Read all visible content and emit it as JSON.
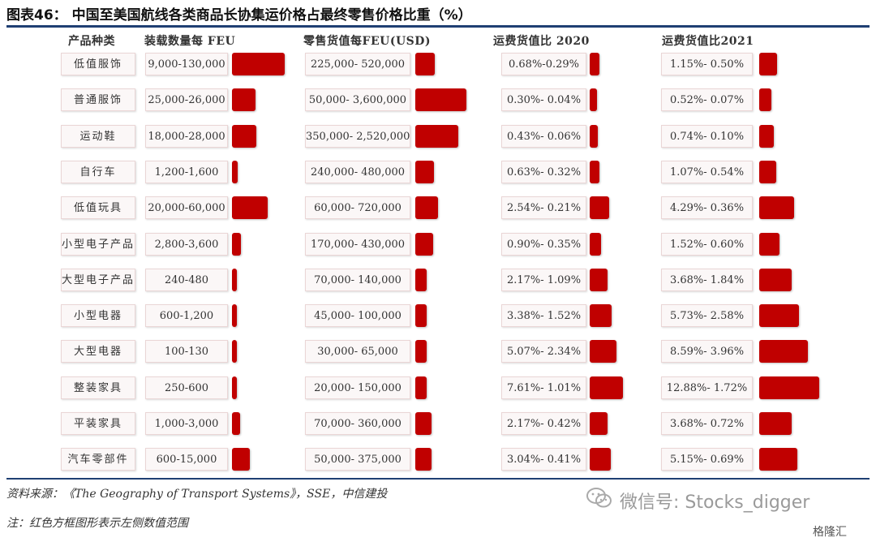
{
  "title": "图表46：  中国至美国航线各类商品长协集运价格占最终零售价格比重（%）",
  "headers": {
    "product": "产品种类",
    "load": "装载数量每 FEU",
    "retail": "零售货值每FEU(USD)",
    "ratio2020": "运费货值比 2020",
    "ratio2021": "运费货值比2021"
  },
  "source": "资料来源：《The Geography of Transport Systems》，SSE，中信建投",
  "note": "注：红色方框图形表示左侧数值范围",
  "watermark": "微信号: Stocks_digger",
  "brand": "格隆汇",
  "colors": {
    "bar": "#c00000",
    "rule": "#1f3f73"
  },
  "chart_data": {
    "type": "table",
    "columns": [
      "产品种类",
      "装载数量每 FEU",
      "零售货值每FEU(USD)",
      "运费货值比 2020",
      "运费货值比2021"
    ],
    "rows": [
      {
        "name": "低值服饰",
        "load": "9,000-130,000",
        "retail": "225,000- 520,000",
        "r2020": "0.68%-0.29%",
        "r2021": "1.15%- 0.50%",
        "bars": [
          130000,
          520000,
          0.68,
          1.15
        ]
      },
      {
        "name": "普通服饰",
        "load": "25,000-26,000",
        "retail": "50,000- 3,600,000",
        "r2020": "0.30%- 0.04%",
        "r2021": "0.52%- 0.07%",
        "bars": [
          26000,
          3600000,
          0.3,
          0.52
        ]
      },
      {
        "name": "运动鞋",
        "load": "18,000-28,000",
        "retail": "350,000- 2,520,000",
        "r2020": "0.43%- 0.06%",
        "r2021": "0.74%- 0.10%",
        "bars": [
          28000,
          2520000,
          0.43,
          0.74
        ]
      },
      {
        "name": "自行车",
        "load": "1,200-1,600",
        "retail": "240,000- 480,000",
        "r2020": "0.63%- 0.32%",
        "r2021": "1.07%- 0.54%",
        "bars": [
          1600,
          480000,
          0.63,
          1.07
        ]
      },
      {
        "name": "低值玩具",
        "load": "20,000-60,000",
        "retail": "60,000- 720,000",
        "r2020": "2.54%- 0.21%",
        "r2021": "4.29%- 0.36%",
        "bars": [
          60000,
          720000,
          2.54,
          4.29
        ]
      },
      {
        "name": "小型电子产品",
        "load": "2,800-3,600",
        "retail": "170,000- 430,000",
        "r2020": "0.90%- 0.35%",
        "r2021": "1.52%- 0.60%",
        "bars": [
          3600,
          430000,
          0.9,
          1.52
        ]
      },
      {
        "name": "大型电子产品",
        "load": "240-480",
        "retail": "70,000- 140,000",
        "r2020": "2.17%- 1.09%",
        "r2021": "3.68%- 1.84%",
        "bars": [
          480,
          140000,
          2.17,
          3.68
        ]
      },
      {
        "name": "小型电器",
        "load": "600-1,200",
        "retail": "45,000- 100,000",
        "r2020": "3.38%- 1.52%",
        "r2021": "5.73%- 2.58%",
        "bars": [
          1200,
          100000,
          3.38,
          5.73
        ]
      },
      {
        "name": "大型电器",
        "load": "100-130",
        "retail": "30,000- 65,000",
        "r2020": "5.07%- 2.34%",
        "r2021": "8.59%- 3.96%",
        "bars": [
          130,
          65000,
          5.07,
          8.59
        ]
      },
      {
        "name": "整装家具",
        "load": "250-600",
        "retail": "20,000- 150,000",
        "r2020": "7.61%- 1.01%",
        "r2021": "12.88%- 1.72%",
        "bars": [
          600,
          150000,
          7.61,
          12.88
        ]
      },
      {
        "name": "平装家具",
        "load": "1,000-3,000",
        "retail": "70,000- 360,000",
        "r2020": "2.17%- 0.42%",
        "r2021": "3.68%- 0.72%",
        "bars": [
          3000,
          360000,
          2.17,
          3.68
        ]
      },
      {
        "name": "汽车零部件",
        "load": "600-15,000",
        "retail": "50,000- 375,000",
        "r2020": "3.04%- 0.41%",
        "r2021": "5.15%- 0.69%",
        "bars": [
          15000,
          375000,
          3.04,
          5.15
        ]
      }
    ]
  }
}
